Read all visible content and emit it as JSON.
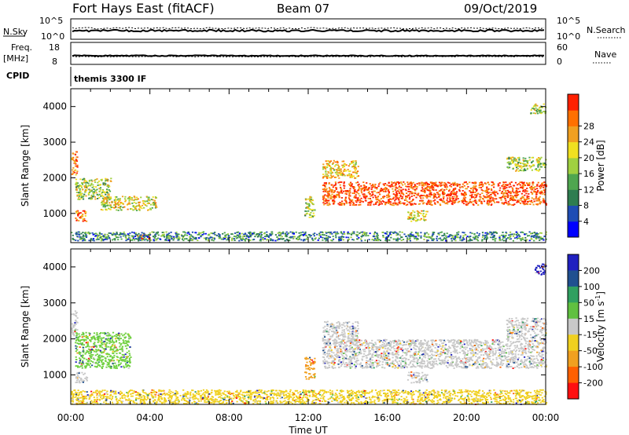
{
  "header": {
    "title": "Fort Hays East (fitACF)",
    "beam": "Beam 07",
    "date": "09/Oct/2019"
  },
  "top_panels": {
    "nsky_label": "N.Sky",
    "nsky_ticks": [
      "10^5",
      "10^0"
    ],
    "nsearch_label": "N.Search",
    "nsearch_ticks": [
      "10^5",
      "10^0"
    ],
    "freq_label": "Freq.",
    "freq_unit": "[MHz]",
    "freq_ticks": [
      "18",
      "8"
    ],
    "nave_label": "Nave",
    "nave_ticks": [
      "60",
      "0"
    ],
    "cpid_label": "CPID",
    "cpid_value": "themis 3300 IF"
  },
  "chart_data": [
    {
      "type": "heatmap",
      "name": "power",
      "ylabel": "Slant Range [km]",
      "y_ticks": [
        "1000",
        "2000",
        "3000",
        "4000"
      ],
      "ylim": [
        180,
        4500
      ],
      "xlim_hours": [
        0,
        24
      ],
      "colorbar_label": "Power [dB]",
      "colorbar_ticks": [
        "4",
        "8",
        "12",
        "16",
        "20",
        "24",
        "28"
      ],
      "colorbar_colors": [
        "#0000ff",
        "#1f4db4",
        "#2e7d50",
        "#4fa64f",
        "#a0d040",
        "#f0e020",
        "#f0a020",
        "#ff7000",
        "#ff2000"
      ],
      "echo_regions": [
        {
          "t0": 0.0,
          "t1": 0.3,
          "r0": 2100,
          "r1": 2800,
          "level": 0.8
        },
        {
          "t0": 0.2,
          "t1": 0.8,
          "r0": 800,
          "r1": 1100,
          "level": 0.85
        },
        {
          "t0": 0.2,
          "t1": 2.0,
          "r0": 1400,
          "r1": 2000,
          "level": 0.5
        },
        {
          "t0": 1.5,
          "t1": 4.3,
          "r0": 1100,
          "r1": 1500,
          "level": 0.6
        },
        {
          "t0": 3.3,
          "t1": 4.0,
          "r0": 300,
          "r1": 450,
          "level": 0.95
        },
        {
          "t0": 0.0,
          "t1": 24.0,
          "r0": 250,
          "r1": 500,
          "level": 0.3
        },
        {
          "t0": 11.8,
          "t1": 12.3,
          "r0": 900,
          "r1": 1500,
          "level": 0.5
        },
        {
          "t0": 12.7,
          "t1": 14.5,
          "r0": 2000,
          "r1": 2500,
          "level": 0.65
        },
        {
          "t0": 12.7,
          "t1": 24.0,
          "r0": 1250,
          "r1": 1900,
          "level": 0.9
        },
        {
          "t0": 17.0,
          "t1": 18.0,
          "r0": 800,
          "r1": 1100,
          "level": 0.6
        },
        {
          "t0": 22.0,
          "t1": 24.0,
          "r0": 2200,
          "r1": 2600,
          "level": 0.5
        },
        {
          "t0": 23.2,
          "t1": 24.0,
          "r0": 3800,
          "r1": 4100,
          "level": 0.5
        }
      ]
    },
    {
      "type": "heatmap",
      "name": "velocity",
      "ylabel": "Slant Range [km]",
      "y_ticks": [
        "1000",
        "2000",
        "3000",
        "4000"
      ],
      "ylim": [
        180,
        4500
      ],
      "xlim_hours": [
        0,
        24
      ],
      "colorbar_label": "Velocity [m s",
      "colorbar_label_sup": "-1",
      "colorbar_ticks": [
        "200",
        "100",
        "50",
        "15",
        "-15",
        "-50",
        "-100",
        "-200"
      ],
      "colorbar_colors": [
        "#2020c0",
        "#205090",
        "#30a060",
        "#60c040",
        "#c8c8c8",
        "#f0d020",
        "#f0a020",
        "#ff6000",
        "#ff1010"
      ],
      "echo_regions": [
        {
          "t0": 0.0,
          "t1": 0.3,
          "r0": 2100,
          "r1": 2800,
          "color": "#c8c8c8"
        },
        {
          "t0": 0.2,
          "t1": 3.0,
          "r0": 1200,
          "r1": 2200,
          "color": "#70d040"
        },
        {
          "t0": 0.2,
          "t1": 0.8,
          "r0": 800,
          "r1": 1100,
          "color": "#c8c8c8"
        },
        {
          "t0": 0.0,
          "t1": 24.0,
          "r0": 200,
          "r1": 600,
          "color": "#f0d020"
        },
        {
          "t0": 11.8,
          "t1": 12.3,
          "r0": 900,
          "r1": 1500,
          "color": "#f0a020"
        },
        {
          "t0": 12.7,
          "t1": 14.5,
          "r0": 1900,
          "r1": 2500,
          "color": "#c8c8c8"
        },
        {
          "t0": 12.7,
          "t1": 24.0,
          "r0": 1200,
          "r1": 2000,
          "color": "#c8c8c8"
        },
        {
          "t0": 17.0,
          "t1": 18.0,
          "r0": 800,
          "r1": 1100,
          "color": "#c8c8c8"
        },
        {
          "t0": 22.0,
          "t1": 24.0,
          "r0": 2000,
          "r1": 2600,
          "color": "#c8c8c8"
        },
        {
          "t0": 23.4,
          "t1": 24.0,
          "r0": 3800,
          "r1": 4100,
          "color": "#2020c0"
        }
      ]
    }
  ],
  "x_axis": {
    "ticks": [
      "00:00",
      "04:00",
      "08:00",
      "12:00",
      "16:00",
      "20:00",
      "00:00"
    ],
    "xlabel": "Time UT"
  }
}
